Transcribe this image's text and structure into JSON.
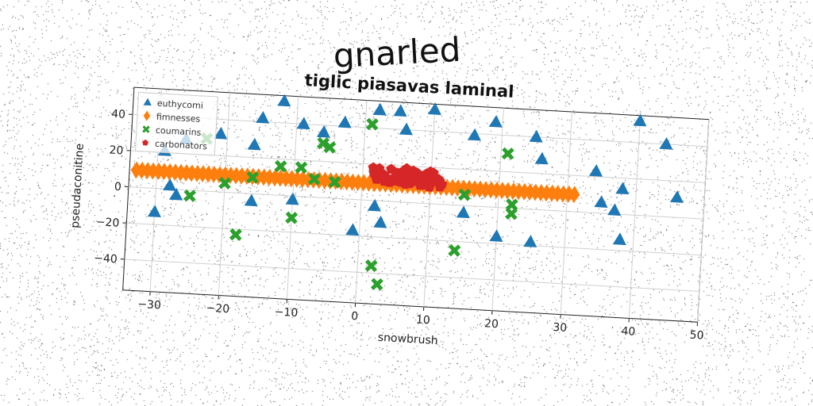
{
  "suptitle": "gnarled",
  "chart_data": {
    "type": "scatter",
    "title": "tiglic piasavas laminal",
    "xlabel": "snowbrush",
    "ylabel": "pseudaconitine",
    "xlim": [
      -34,
      50
    ],
    "ylim": [
      -57,
      55
    ],
    "xticks": [
      -30,
      -20,
      -10,
      0,
      10,
      20,
      30,
      40,
      50
    ],
    "yticks": [
      -40,
      -20,
      0,
      20,
      40
    ],
    "grid": true,
    "legend_position": "top-left",
    "series": [
      {
        "name": "euthycomi",
        "marker": "triangle",
        "color": "#1f77b4",
        "points": [
          [
            -29,
            21
          ],
          [
            -26,
            28
          ],
          [
            -21,
            32
          ],
          [
            -16,
            27
          ],
          [
            -15,
            42
          ],
          [
            -12,
            52
          ],
          [
            -9,
            40
          ],
          [
            -6,
            36
          ],
          [
            -3,
            42
          ],
          [
            2,
            50
          ],
          [
            5,
            50
          ],
          [
            6,
            40
          ],
          [
            10,
            52
          ],
          [
            16,
            39
          ],
          [
            19,
            47
          ],
          [
            25,
            40
          ],
          [
            26,
            28
          ],
          [
            34,
            23
          ],
          [
            40,
            52
          ],
          [
            44,
            40
          ],
          [
            46,
            11
          ],
          [
            38,
            14
          ],
          [
            35,
            6
          ],
          [
            37,
            2
          ],
          [
            38,
            -14
          ],
          [
            -30,
            -13
          ],
          [
            -28,
            2
          ],
          [
            -27,
            -3
          ],
          [
            -16,
            -4
          ],
          [
            -10,
            -2
          ],
          [
            -1,
            -17
          ],
          [
            2,
            -3
          ],
          [
            3,
            -12
          ],
          [
            15,
            -4
          ],
          [
            20,
            -16
          ],
          [
            25,
            -18
          ]
        ]
      },
      {
        "name": "fimnesses",
        "marker": "diamond",
        "color": "#ff7f0e",
        "x_range": [
          -33,
          31
        ],
        "y_value": 9.5,
        "count": 80
      },
      {
        "name": "coumarins",
        "marker": "x",
        "color": "#2ca02c",
        "points": [
          [
            -25,
            -3
          ],
          [
            -23,
            29
          ],
          [
            -20,
            5
          ],
          [
            -18,
            -23
          ],
          [
            -16,
            9
          ],
          [
            -12,
            16
          ],
          [
            -10,
            -12
          ],
          [
            -9,
            16
          ],
          [
            -7,
            10
          ],
          [
            -6,
            30
          ],
          [
            -5,
            28
          ],
          [
            -4,
            9
          ],
          [
            1,
            42
          ],
          [
            2,
            -36
          ],
          [
            3,
            -46
          ],
          [
            14,
            -25
          ],
          [
            15,
            6
          ],
          [
            21,
            30
          ],
          [
            22,
            2
          ],
          [
            22,
            -3
          ]
        ]
      },
      {
        "name": "carbonators",
        "marker": "pentagon",
        "color": "#d62728",
        "x_range": [
          1,
          12
        ],
        "y_range": [
          9,
          19
        ],
        "count": 60
      }
    ]
  }
}
